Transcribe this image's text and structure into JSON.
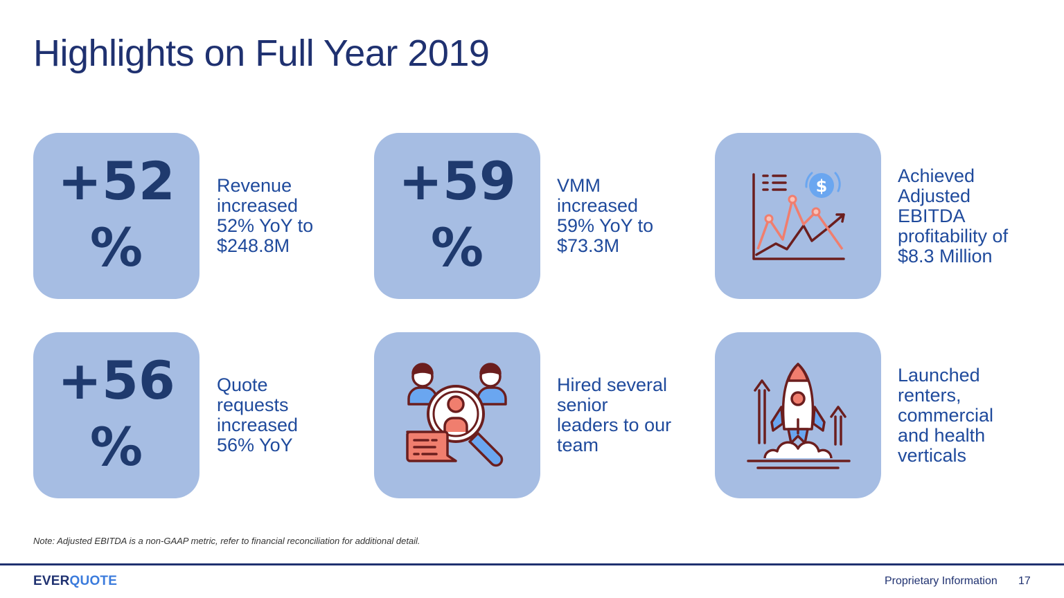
{
  "title": "Highlights on Full Year 2019",
  "highlights": [
    {
      "stat_line1": "+52",
      "stat_line2": "%",
      "description": [
        "Revenue",
        "increased",
        "52% YoY to",
        "$248.8M"
      ]
    },
    {
      "stat_line1": "+59",
      "stat_line2": "%",
      "description": [
        "VMM",
        "increased",
        "59% YoY to",
        "$73.3M"
      ]
    },
    {
      "icon": "growth-chart-dollar-icon",
      "description": [
        "Achieved",
        "Adjusted",
        "EBITDA",
        "profitability of",
        "$8.3 Million"
      ]
    },
    {
      "stat_line1": "+56",
      "stat_line2": "%",
      "description": [
        "Quote",
        "requests",
        "increased",
        "56% YoY"
      ]
    },
    {
      "icon": "talent-search-icon",
      "description": [
        "Hired several",
        "senior",
        "leaders to our",
        "team"
      ]
    },
    {
      "icon": "rocket-launch-icon",
      "description": [
        "Launched",
        "renters,",
        "commercial",
        "and health",
        "verticals"
      ]
    }
  ],
  "note": "Note: Adjusted EBITDA is a non-GAAP metric, refer to financial reconciliation for additional detail.",
  "footer": {
    "logo_part1": "EVER",
    "logo_part2": "QUOTE",
    "label": "Proprietary Information",
    "page_number": "17"
  },
  "colors": {
    "tile": "#a6bde3",
    "stat_text": "#1f3a6e",
    "description_text": "#1f4a9c",
    "title_text": "#1f3170",
    "icon_dark": "#6b1e1e",
    "icon_accent": "#f07e6e",
    "icon_blue": "#6aa6f0"
  }
}
